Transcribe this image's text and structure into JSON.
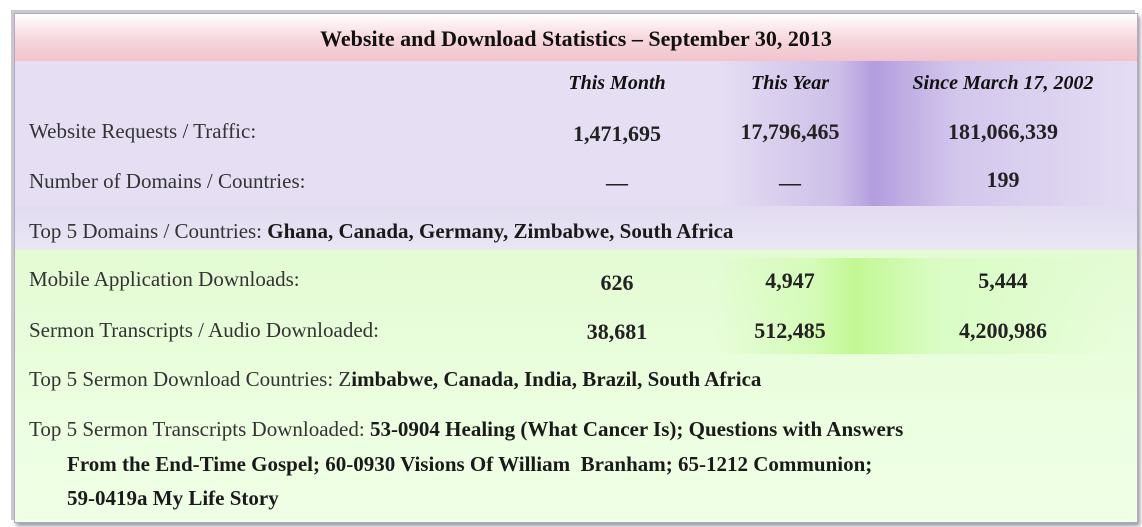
{
  "title": "Website and Download Statistics – September 30, 2013",
  "columns": [
    "This Month",
    "This Year",
    "Since March 17, 2002"
  ],
  "rows": [
    {
      "label": "Website Requests / Traffic:",
      "month": "1,471,695",
      "year": "17,796,465",
      "since": "181,066,339"
    },
    {
      "label": "Number of Domains / Countries:",
      "month": "—",
      "year": "—",
      "since": "199"
    },
    {
      "label": "Mobile Application Downloads:",
      "month": "626",
      "year": "4,947",
      "since": "5,444"
    },
    {
      "label": "Sermon Transcripts / Audio Downloaded:",
      "month": "38,681",
      "year": "512,485",
      "since": "4,200,986"
    }
  ],
  "top_domains": {
    "label": "Top 5 Domains / Countries: ",
    "value": "Ghana, Canada, Germany, Zimbabwe, South Africa"
  },
  "top_sermon_countries": {
    "label": "Top 5 Sermon Download Countries: Z",
    "value": "imbabwe, Canada, India, Brazil, South Africa"
  },
  "top_transcripts": {
    "label": "Top 5 Sermon Transcripts Downloaded: ",
    "line1": "53-0904 Healing (What Cancer Is); Questions with Answers",
    "line2": "From the End-Time Gospel; 60-0930 Visions Of William  Branham; 65-1212 Communion;",
    "line3": "59-0419a My Life Story"
  },
  "colors": {
    "title_band": "#f1c4cd",
    "purple_band": "#e6dff4",
    "green_band": "#ecffde"
  }
}
